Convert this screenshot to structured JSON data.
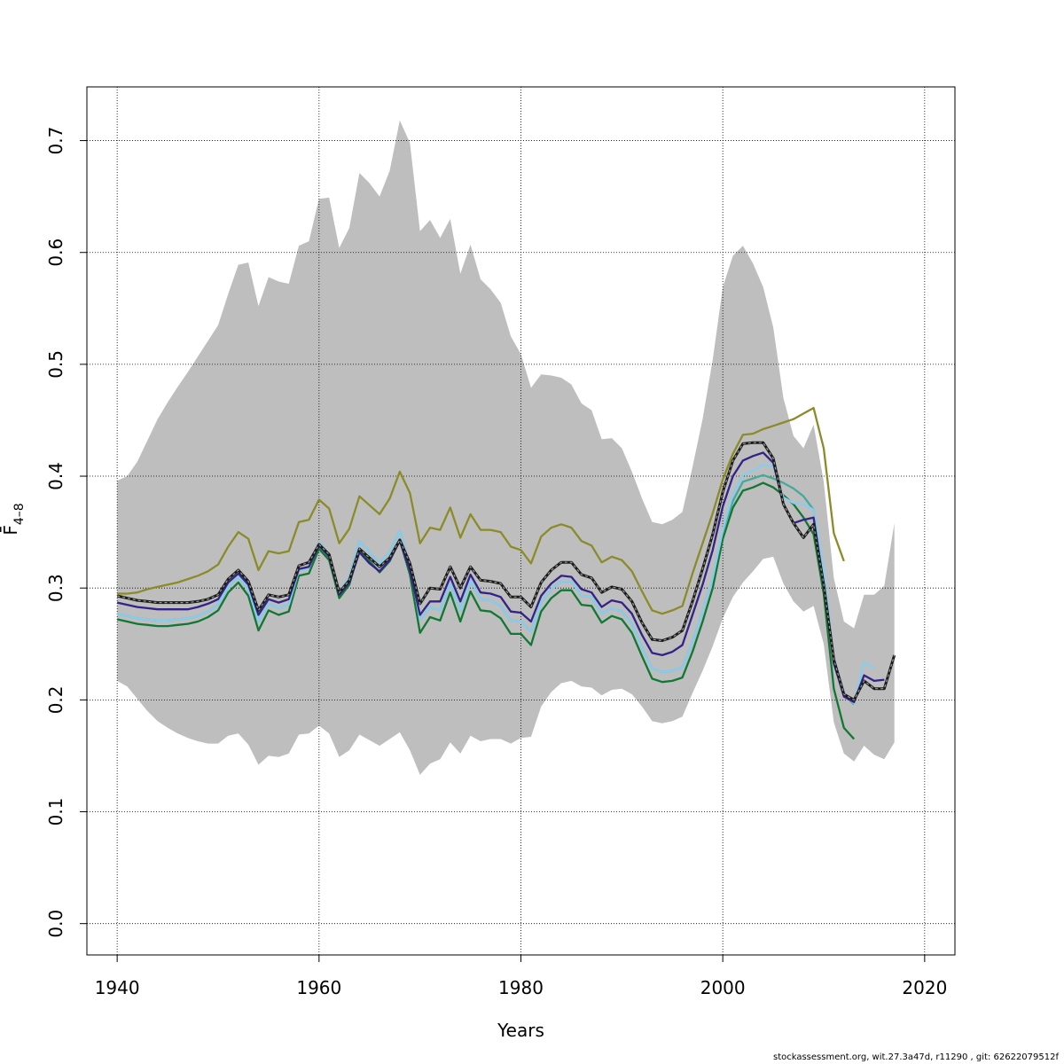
{
  "chart_data": {
    "type": "line",
    "xlabel": "Years",
    "ylabel": "F̄",
    "ylabel_sub": "4–8",
    "xlim": [
      1937,
      2023
    ],
    "ylim": [
      -0.028,
      0.748
    ],
    "xticks": [
      1940,
      1960,
      1980,
      2000,
      2020
    ],
    "yticks": [
      0.0,
      0.1,
      0.2,
      0.3,
      0.4,
      0.5,
      0.6,
      0.7
    ],
    "grid": true,
    "band": {
      "x": [
        1940,
        1941,
        1942,
        1943,
        1944,
        1945,
        1946,
        1947,
        1948,
        1949,
        1950,
        1951,
        1952,
        1953,
        1954,
        1955,
        1956,
        1957,
        1958,
        1959,
        1960,
        1961,
        1962,
        1963,
        1964,
        1965,
        1966,
        1967,
        1968,
        1969,
        1970,
        1971,
        1972,
        1973,
        1974,
        1975,
        1976,
        1977,
        1978,
        1979,
        1980,
        1981,
        1982,
        1983,
        1984,
        1985,
        1986,
        1987,
        1988,
        1989,
        1990,
        1991,
        1992,
        1993,
        1994,
        1995,
        1996,
        1997,
        1998,
        1999,
        2000,
        2001,
        2002,
        2003,
        2004,
        2005,
        2006,
        2007,
        2008,
        2009,
        2010,
        2011,
        2012,
        2013,
        2014,
        2015,
        2016,
        2017
      ],
      "upper": [
        0.396,
        0.4,
        0.413,
        0.432,
        0.451,
        0.466,
        0.48,
        0.493,
        0.507,
        0.521,
        0.535,
        0.563,
        0.589,
        0.591,
        0.552,
        0.578,
        0.574,
        0.572,
        0.606,
        0.61,
        0.648,
        0.649,
        0.604,
        0.622,
        0.671,
        0.662,
        0.65,
        0.673,
        0.718,
        0.698,
        0.619,
        0.629,
        0.613,
        0.63,
        0.581,
        0.607,
        0.576,
        0.567,
        0.555,
        0.525,
        0.509,
        0.479,
        0.491,
        0.49,
        0.488,
        0.482,
        0.465,
        0.459,
        0.433,
        0.434,
        0.425,
        0.404,
        0.38,
        0.359,
        0.357,
        0.361,
        0.368,
        0.408,
        0.451,
        0.504,
        0.569,
        0.597,
        0.606,
        0.59,
        0.569,
        0.533,
        0.47,
        0.436,
        0.425,
        0.446,
        0.395,
        0.309,
        0.27,
        0.264,
        0.294,
        0.294,
        0.302,
        0.358
      ],
      "lower": [
        0.217,
        0.212,
        0.201,
        0.19,
        0.181,
        0.175,
        0.17,
        0.166,
        0.163,
        0.161,
        0.161,
        0.168,
        0.17,
        0.16,
        0.142,
        0.15,
        0.149,
        0.152,
        0.169,
        0.17,
        0.177,
        0.17,
        0.149,
        0.155,
        0.169,
        0.164,
        0.159,
        0.165,
        0.171,
        0.155,
        0.133,
        0.143,
        0.147,
        0.162,
        0.152,
        0.168,
        0.163,
        0.165,
        0.165,
        0.161,
        0.166,
        0.167,
        0.194,
        0.207,
        0.215,
        0.217,
        0.212,
        0.211,
        0.204,
        0.209,
        0.21,
        0.205,
        0.194,
        0.181,
        0.179,
        0.181,
        0.185,
        0.206,
        0.226,
        0.248,
        0.273,
        0.292,
        0.305,
        0.315,
        0.326,
        0.328,
        0.304,
        0.288,
        0.279,
        0.284,
        0.25,
        0.18,
        0.152,
        0.145,
        0.159,
        0.151,
        0.147,
        0.162
      ]
    },
    "series": [
      {
        "color": "#8B8B2A",
        "dashed": false,
        "x": [
          1940,
          1941,
          1942,
          1943,
          1944,
          1945,
          1946,
          1947,
          1948,
          1949,
          1950,
          1951,
          1952,
          1953,
          1954,
          1955,
          1956,
          1957,
          1958,
          1959,
          1960,
          1961,
          1962,
          1963,
          1964,
          1965,
          1966,
          1967,
          1968,
          1969,
          1970,
          1971,
          1972,
          1973,
          1974,
          1975,
          1976,
          1977,
          1978,
          1979,
          1980,
          1981,
          1982,
          1983,
          1984,
          1985,
          1986,
          1987,
          1988,
          1989,
          1990,
          1991,
          1992,
          1993,
          1994,
          1995,
          1996,
          1997,
          1998,
          1999,
          2000,
          2001,
          2002,
          2003,
          2004,
          2005,
          2006,
          2007,
          2008,
          2009,
          2010,
          2011,
          2012
        ],
        "y": [
          0.295,
          0.295,
          0.296,
          0.299,
          0.301,
          0.303,
          0.305,
          0.308,
          0.311,
          0.315,
          0.321,
          0.337,
          0.35,
          0.344,
          0.316,
          0.333,
          0.331,
          0.333,
          0.359,
          0.361,
          0.379,
          0.371,
          0.34,
          0.353,
          0.382,
          0.374,
          0.366,
          0.38,
          0.404,
          0.385,
          0.34,
          0.354,
          0.352,
          0.372,
          0.345,
          0.366,
          0.352,
          0.352,
          0.35,
          0.337,
          0.334,
          0.322,
          0.346,
          0.354,
          0.357,
          0.354,
          0.342,
          0.338,
          0.323,
          0.328,
          0.325,
          0.315,
          0.297,
          0.28,
          0.277,
          0.28,
          0.284,
          0.313,
          0.34,
          0.367,
          0.397,
          0.42,
          0.437,
          0.438,
          0.442,
          0.445,
          0.448,
          0.451,
          0.456,
          0.461,
          0.425,
          0.349,
          0.324
        ]
      },
      {
        "color": "#117733",
        "dashed": false,
        "x": [
          1940,
          1941,
          1942,
          1943,
          1944,
          1945,
          1946,
          1947,
          1948,
          1949,
          1950,
          1951,
          1952,
          1953,
          1954,
          1955,
          1956,
          1957,
          1958,
          1959,
          1960,
          1961,
          1962,
          1963,
          1964,
          1965,
          1966,
          1967,
          1968,
          1969,
          1970,
          1971,
          1972,
          1973,
          1974,
          1975,
          1976,
          1977,
          1978,
          1979,
          1980,
          1981,
          1982,
          1983,
          1984,
          1985,
          1986,
          1987,
          1988,
          1989,
          1990,
          1991,
          1992,
          1993,
          1994,
          1995,
          1996,
          1997,
          1998,
          1999,
          2000,
          2001,
          2002,
          2003,
          2004,
          2005,
          2006,
          2007,
          2008,
          2009,
          2010,
          2011,
          2012,
          2013
        ],
        "y": [
          0.272,
          0.27,
          0.268,
          0.267,
          0.266,
          0.266,
          0.267,
          0.268,
          0.27,
          0.274,
          0.28,
          0.296,
          0.305,
          0.293,
          0.262,
          0.28,
          0.276,
          0.279,
          0.311,
          0.313,
          0.335,
          0.325,
          0.291,
          0.303,
          0.335,
          0.324,
          0.314,
          0.324,
          0.343,
          0.312,
          0.26,
          0.274,
          0.271,
          0.296,
          0.27,
          0.297,
          0.28,
          0.279,
          0.273,
          0.259,
          0.259,
          0.249,
          0.279,
          0.291,
          0.298,
          0.298,
          0.285,
          0.284,
          0.269,
          0.275,
          0.272,
          0.26,
          0.239,
          0.219,
          0.216,
          0.217,
          0.22,
          0.243,
          0.27,
          0.3,
          0.344,
          0.372,
          0.387,
          0.39,
          0.394,
          0.39,
          0.383,
          0.375,
          0.363,
          0.348,
          0.295,
          0.21,
          0.175,
          0.165
        ]
      },
      {
        "color": "#44AA99",
        "dashed": false,
        "x": [
          1940,
          1941,
          1942,
          1943,
          1944,
          1945,
          1946,
          1947,
          1948,
          1949,
          1950,
          1951,
          1952,
          1953,
          1954,
          1955,
          1956,
          1957,
          1958,
          1959,
          1960,
          1961,
          1962,
          1963,
          1964,
          1965,
          1966,
          1967,
          1968,
          1969,
          1970,
          1971,
          1972,
          1973,
          1974,
          1975,
          1976,
          1977,
          1978,
          1979,
          1980,
          1981,
          1982,
          1983,
          1984,
          1985,
          1986,
          1987,
          1988,
          1989,
          1990,
          1991,
          1992,
          1993,
          1994,
          1995,
          1996,
          1997,
          1998,
          1999,
          2000,
          2001,
          2002,
          2003,
          2004,
          2005,
          2006,
          2007,
          2008,
          2009,
          2010,
          2011,
          2012,
          2013
        ],
        "y": [
          0.277,
          0.275,
          0.273,
          0.272,
          0.271,
          0.271,
          0.272,
          0.273,
          0.275,
          0.279,
          0.285,
          0.301,
          0.31,
          0.299,
          0.27,
          0.286,
          0.282,
          0.285,
          0.316,
          0.318,
          0.341,
          0.33,
          0.296,
          0.31,
          0.342,
          0.332,
          0.322,
          0.332,
          0.351,
          0.32,
          0.272,
          0.283,
          0.28,
          0.304,
          0.28,
          0.307,
          0.29,
          0.289,
          0.284,
          0.271,
          0.27,
          0.261,
          0.287,
          0.299,
          0.306,
          0.306,
          0.293,
          0.292,
          0.277,
          0.282,
          0.279,
          0.268,
          0.247,
          0.228,
          0.225,
          0.226,
          0.229,
          0.252,
          0.279,
          0.309,
          0.351,
          0.378,
          0.395,
          0.398,
          0.401,
          0.398,
          0.394,
          0.389,
          0.382,
          0.37,
          0.313,
          0.232,
          0.205,
          0.196
        ]
      },
      {
        "color": "#88CCEE",
        "dashed": false,
        "x": [
          1940,
          1941,
          1942,
          1943,
          1944,
          1945,
          1946,
          1947,
          1948,
          1949,
          1950,
          1951,
          1952,
          1953,
          1954,
          1955,
          1956,
          1957,
          1958,
          1959,
          1960,
          1961,
          1962,
          1963,
          1964,
          1965,
          1966,
          1967,
          1968,
          1969,
          1970,
          1971,
          1972,
          1973,
          1974,
          1975,
          1976,
          1977,
          1978,
          1979,
          1980,
          1981,
          1982,
          1983,
          1984,
          1985,
          1986,
          1987,
          1988,
          1989,
          1990,
          1991,
          1992,
          1993,
          1994,
          1995,
          1996,
          1997,
          1998,
          1999,
          2000,
          2001,
          2002,
          2003,
          2004,
          2005,
          2006,
          2007,
          2008,
          2009,
          2010,
          2011,
          2012,
          2013,
          2014,
          2015
        ],
        "y": [
          0.277,
          0.275,
          0.273,
          0.272,
          0.271,
          0.271,
          0.272,
          0.273,
          0.275,
          0.279,
          0.285,
          0.301,
          0.31,
          0.299,
          0.27,
          0.286,
          0.282,
          0.285,
          0.316,
          0.318,
          0.341,
          0.33,
          0.296,
          0.31,
          0.342,
          0.332,
          0.322,
          0.332,
          0.351,
          0.32,
          0.272,
          0.283,
          0.28,
          0.304,
          0.28,
          0.307,
          0.29,
          0.289,
          0.284,
          0.271,
          0.27,
          0.261,
          0.287,
          0.299,
          0.306,
          0.306,
          0.293,
          0.292,
          0.277,
          0.282,
          0.279,
          0.268,
          0.247,
          0.228,
          0.225,
          0.226,
          0.229,
          0.252,
          0.279,
          0.309,
          0.352,
          0.384,
          0.401,
          0.405,
          0.41,
          0.409,
          0.381,
          0.376,
          0.375,
          0.37,
          0.316,
          0.238,
          0.206,
          0.197,
          0.234,
          0.228
        ]
      },
      {
        "color": "#332288",
        "dashed": false,
        "x": [
          1940,
          1941,
          1942,
          1943,
          1944,
          1945,
          1946,
          1947,
          1948,
          1949,
          1950,
          1951,
          1952,
          1953,
          1954,
          1955,
          1956,
          1957,
          1958,
          1959,
          1960,
          1961,
          1962,
          1963,
          1964,
          1965,
          1966,
          1967,
          1968,
          1969,
          1970,
          1971,
          1972,
          1973,
          1974,
          1975,
          1976,
          1977,
          1978,
          1979,
          1980,
          1981,
          1982,
          1983,
          1984,
          1985,
          1986,
          1987,
          1988,
          1989,
          1990,
          1991,
          1992,
          1993,
          1994,
          1995,
          1996,
          1997,
          1998,
          1999,
          2000,
          2001,
          2002,
          2003,
          2004,
          2005,
          2006,
          2007,
          2008,
          2009,
          2010,
          2011,
          2012,
          2013,
          2014,
          2015,
          2016
        ],
        "y": [
          0.287,
          0.285,
          0.283,
          0.282,
          0.281,
          0.281,
          0.281,
          0.281,
          0.283,
          0.286,
          0.29,
          0.305,
          0.313,
          0.303,
          0.276,
          0.29,
          0.287,
          0.29,
          0.317,
          0.319,
          0.338,
          0.328,
          0.294,
          0.305,
          0.332,
          0.322,
          0.315,
          0.325,
          0.342,
          0.316,
          0.276,
          0.288,
          0.288,
          0.31,
          0.288,
          0.312,
          0.296,
          0.295,
          0.292,
          0.279,
          0.278,
          0.27,
          0.293,
          0.304,
          0.311,
          0.31,
          0.299,
          0.296,
          0.283,
          0.289,
          0.287,
          0.277,
          0.258,
          0.242,
          0.24,
          0.243,
          0.249,
          0.276,
          0.303,
          0.334,
          0.373,
          0.4,
          0.414,
          0.418,
          0.421,
          0.412,
          0.375,
          0.358,
          0.361,
          0.363,
          0.303,
          0.233,
          0.203,
          0.198,
          0.222,
          0.217,
          0.218
        ]
      },
      {
        "color": "#1a1a1a",
        "dashed": true,
        "x": [
          1940,
          1941,
          1942,
          1943,
          1944,
          1945,
          1946,
          1947,
          1948,
          1949,
          1950,
          1951,
          1952,
          1953,
          1954,
          1955,
          1956,
          1957,
          1958,
          1959,
          1960,
          1961,
          1962,
          1963,
          1964,
          1965,
          1966,
          1967,
          1968,
          1969,
          1970,
          1971,
          1972,
          1973,
          1974,
          1975,
          1976,
          1977,
          1978,
          1979,
          1980,
          1981,
          1982,
          1983,
          1984,
          1985,
          1986,
          1987,
          1988,
          1989,
          1990,
          1991,
          1992,
          1993,
          1994,
          1995,
          1996,
          1997,
          1998,
          1999,
          2000,
          2001,
          2002,
          2003,
          2004,
          2005,
          2006,
          2007,
          2008,
          2009,
          2010,
          2011,
          2012,
          2013,
          2014,
          2015,
          2016,
          2017
        ],
        "y": [
          0.293,
          0.291,
          0.289,
          0.288,
          0.287,
          0.287,
          0.287,
          0.287,
          0.288,
          0.29,
          0.294,
          0.308,
          0.316,
          0.306,
          0.28,
          0.294,
          0.292,
          0.294,
          0.32,
          0.323,
          0.339,
          0.33,
          0.296,
          0.307,
          0.335,
          0.327,
          0.319,
          0.327,
          0.343,
          0.322,
          0.286,
          0.3,
          0.299,
          0.319,
          0.3,
          0.319,
          0.307,
          0.306,
          0.304,
          0.292,
          0.292,
          0.283,
          0.305,
          0.316,
          0.323,
          0.323,
          0.312,
          0.309,
          0.296,
          0.301,
          0.299,
          0.288,
          0.269,
          0.254,
          0.253,
          0.256,
          0.262,
          0.288,
          0.317,
          0.348,
          0.386,
          0.414,
          0.429,
          0.43,
          0.43,
          0.416,
          0.375,
          0.358,
          0.345,
          0.357,
          0.303,
          0.236,
          0.205,
          0.2,
          0.217,
          0.21,
          0.21,
          0.24
        ]
      }
    ],
    "band_color": "#BEBEBE"
  },
  "footer": "stockassessment.org, wit.27.3a47d, r11290 , git: 62622079512f"
}
